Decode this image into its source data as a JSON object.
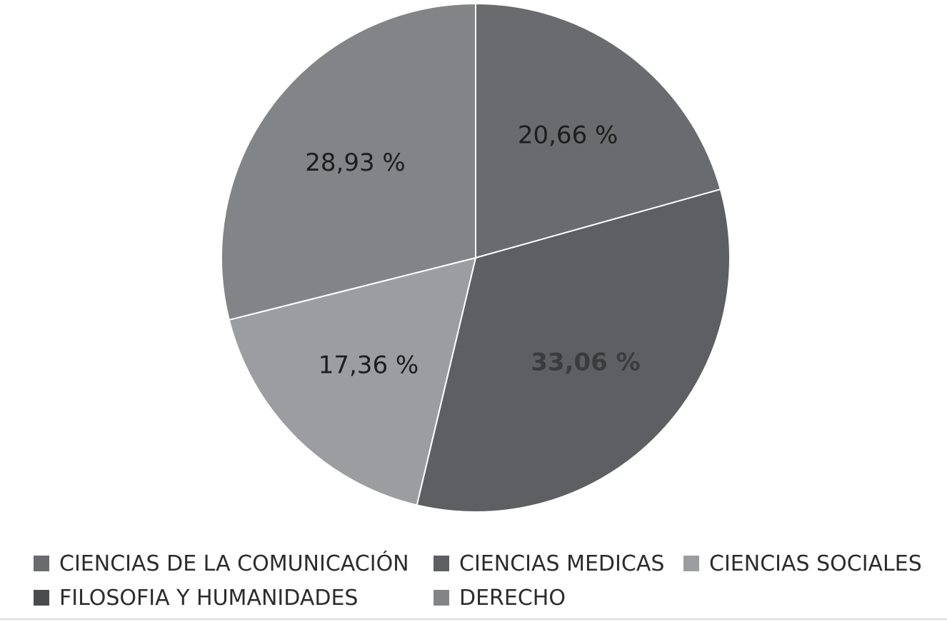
{
  "chart_data": {
    "type": "pie",
    "title": "",
    "slices": [
      {
        "name": "CIENCIAS DE LA COMUNICACIÓN",
        "value": 20.66,
        "label": "20,66 %",
        "color": "#6a6b6e"
      },
      {
        "name": "CIENCIAS MEDICAS",
        "value": 33.06,
        "label": "33,06 %",
        "color": "#5e5f62"
      },
      {
        "name": "CIENCIAS SOCIALES",
        "value": 17.36,
        "label": "17,36 %",
        "color": "#9c9da0"
      },
      {
        "name": "DERECHO",
        "value": 28.93,
        "label": "28,93 %",
        "color": "#838487"
      }
    ],
    "legend": [
      {
        "label": "CIENCIAS DE LA COMUNICACIÓN",
        "color": "#6a6b6e"
      },
      {
        "label": "CIENCIAS MEDICAS",
        "color": "#5e5f62"
      },
      {
        "label": "CIENCIAS SOCIALES",
        "color": "#9c9da0"
      },
      {
        "label": "FILOSOFIA Y HUMANIDADES",
        "color": "#4a4b4e"
      },
      {
        "label": "DERECHO",
        "color": "#838487"
      }
    ],
    "legend_position": "bottom"
  }
}
